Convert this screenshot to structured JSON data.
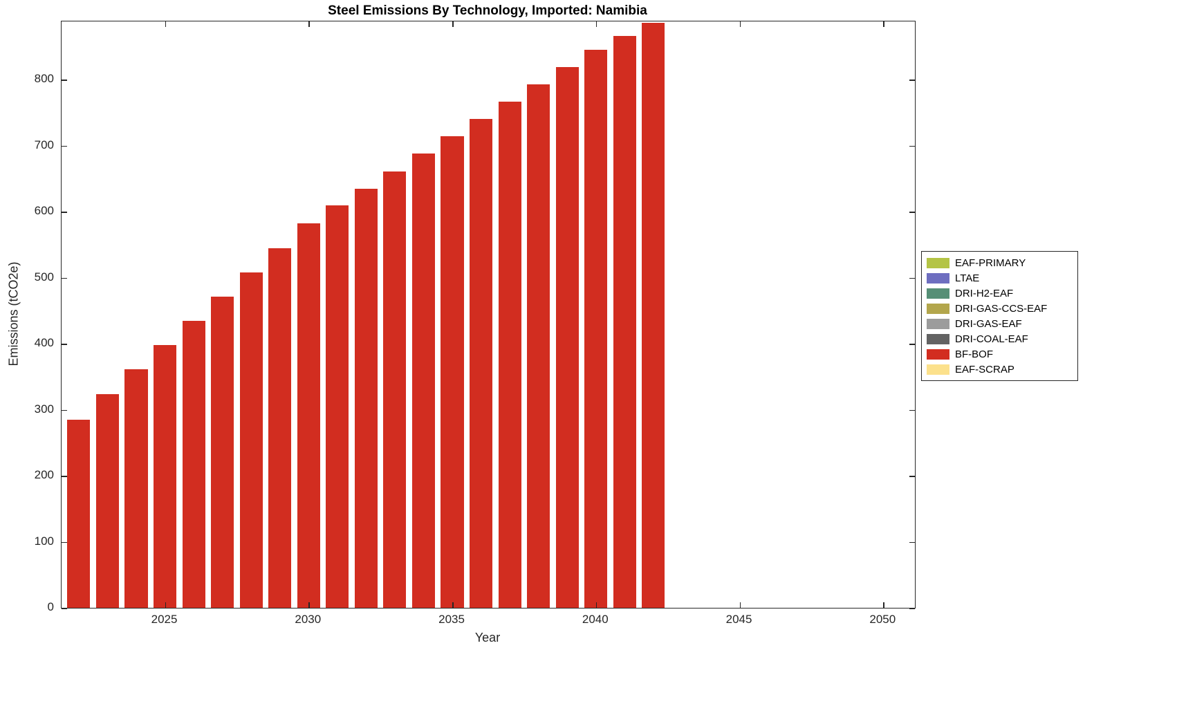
{
  "chart_data": {
    "type": "bar",
    "title": "Steel Emissions By Technology, Imported: Namibia",
    "xlabel": "Year",
    "ylabel": "Emissions (tCO2e)",
    "series_name": "BF-BOF",
    "bar_color": "#d22d20",
    "x": [
      2022,
      2023,
      2024,
      2025,
      2026,
      2027,
      2028,
      2029,
      2030,
      2031,
      2032,
      2033,
      2034,
      2035,
      2036,
      2037,
      2038,
      2039,
      2040,
      2041,
      2042
    ],
    "values": [
      285,
      324,
      361,
      398,
      435,
      471,
      508,
      545,
      582,
      609,
      635,
      661,
      688,
      714,
      740,
      767,
      793,
      819,
      845,
      866,
      886
    ],
    "bar_width": 0.8,
    "xlim": [
      2021.4,
      2051.1
    ],
    "ylim": [
      0,
      888
    ],
    "xticks": [
      2025,
      2030,
      2035,
      2040,
      2045,
      2050
    ],
    "yticks": [
      0,
      100,
      200,
      300,
      400,
      500,
      600,
      700,
      800
    ],
    "grid": false,
    "legend_position": "right-outside",
    "legend": [
      {
        "label": "EAF-PRIMARY",
        "color": "#b4c445"
      },
      {
        "label": "LTAE",
        "color": "#6e6ec0"
      },
      {
        "label": "DRI-H2-EAF",
        "color": "#568f76"
      },
      {
        "label": "DRI-GAS-CCS-EAF",
        "color": "#b3a64c"
      },
      {
        "label": "DRI-GAS-EAF",
        "color": "#9c9c9c"
      },
      {
        "label": "DRI-COAL-EAF",
        "color": "#636363"
      },
      {
        "label": "BF-BOF",
        "color": "#d22d20"
      },
      {
        "label": "EAF-SCRAP",
        "color": "#fce18c"
      }
    ]
  }
}
